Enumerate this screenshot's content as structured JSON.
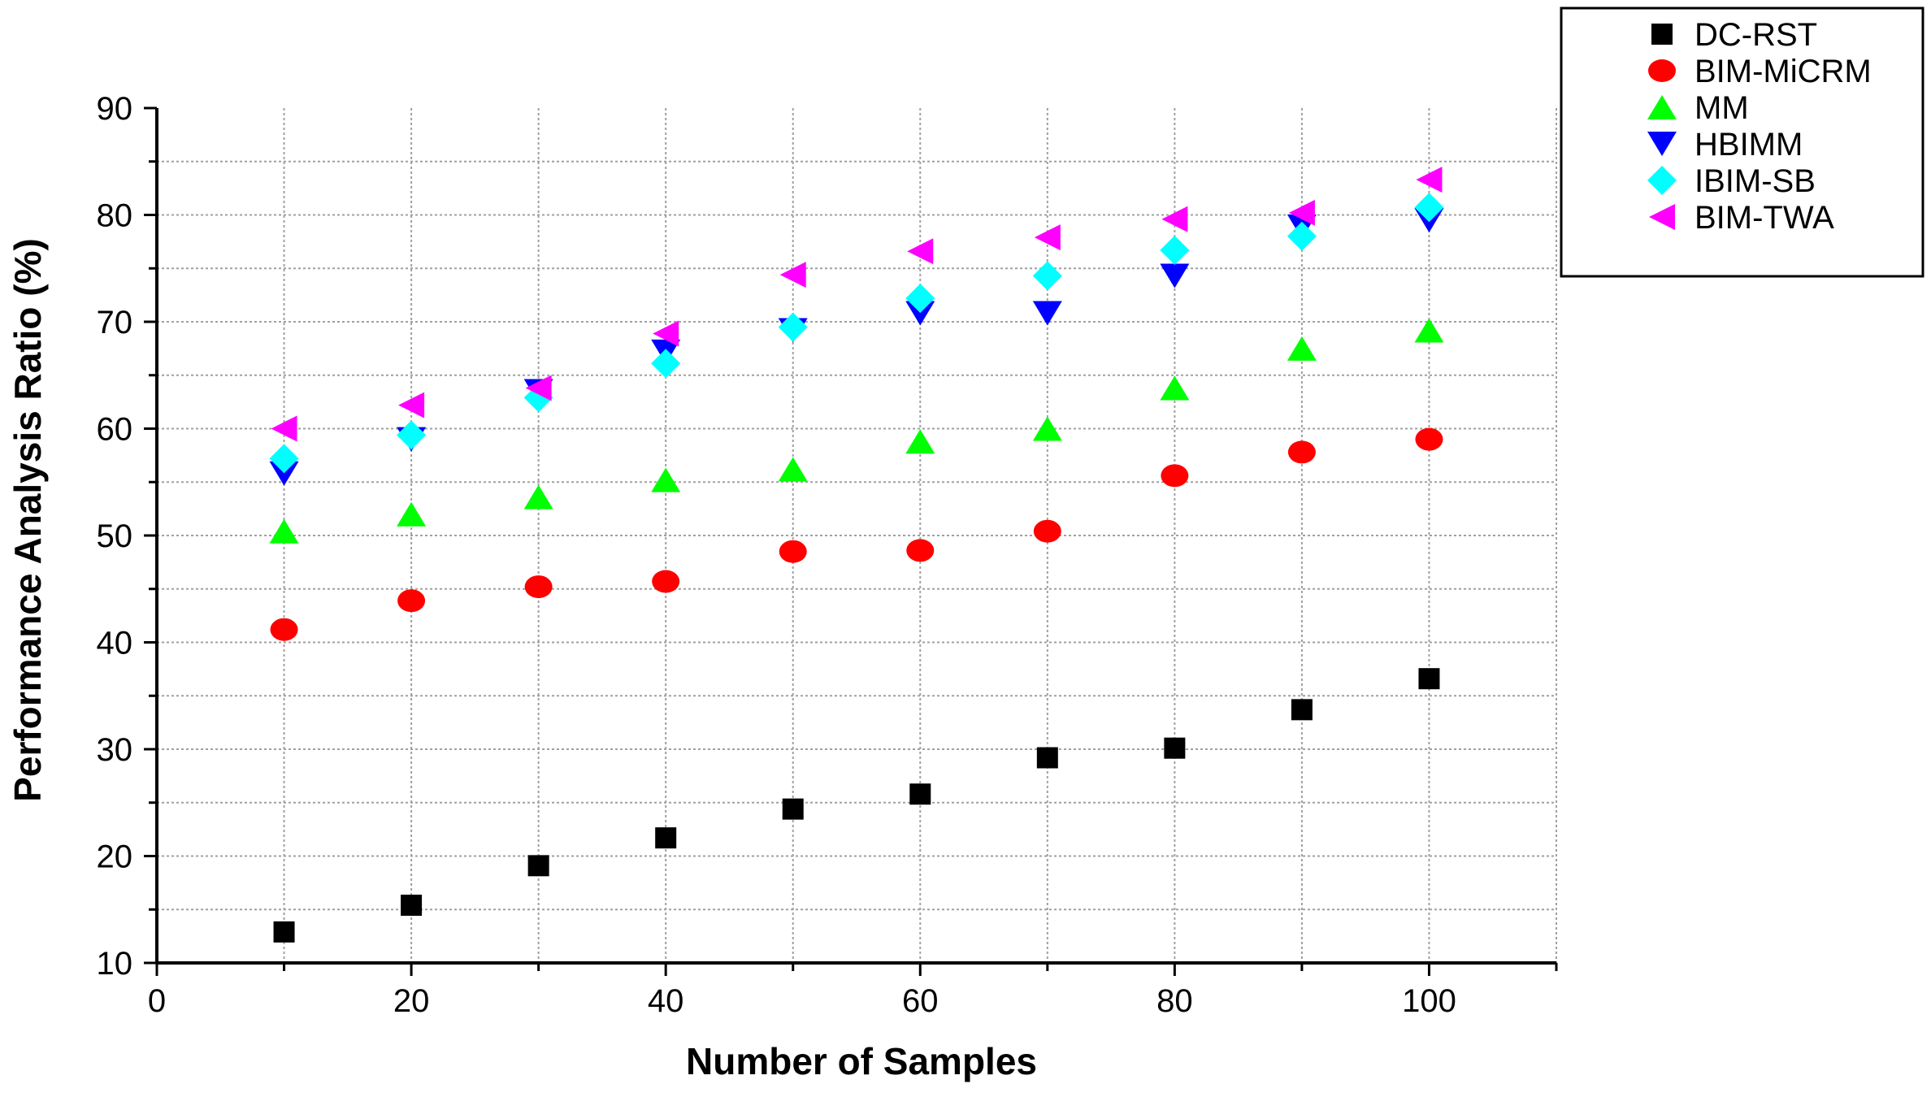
{
  "chart_data": {
    "type": "scatter",
    "title": "",
    "xlabel": "Number of Samples",
    "ylabel": "Performance Analysis Ratio (%)",
    "xlim": [
      0,
      110
    ],
    "ylim": [
      10,
      90
    ],
    "xticks": [
      0,
      20,
      40,
      60,
      80,
      100
    ],
    "yticks": [
      10,
      20,
      30,
      40,
      50,
      60,
      70,
      80,
      90
    ],
    "grid": true,
    "legend_position": "top-right",
    "x": [
      10,
      20,
      30,
      40,
      50,
      60,
      70,
      80,
      90,
      100
    ],
    "series": [
      {
        "name": "DC-RST",
        "marker": "square",
        "color": "#000000",
        "values": [
          12.9,
          15.4,
          19.1,
          21.7,
          24.4,
          25.8,
          29.2,
          30.1,
          33.7,
          36.6
        ]
      },
      {
        "name": "BIM-MiCRM",
        "marker": "circle",
        "color": "#ff0000",
        "values": [
          41.2,
          43.9,
          45.2,
          45.7,
          48.5,
          48.6,
          50.4,
          55.6,
          57.8,
          59.0
        ]
      },
      {
        "name": "MM",
        "marker": "triangle-up",
        "color": "#00ff00",
        "values": [
          50.4,
          52.0,
          53.6,
          55.2,
          56.2,
          58.8,
          60.0,
          63.8,
          67.5,
          69.2
        ]
      },
      {
        "name": "HBIMM",
        "marker": "triangle-down",
        "color": "#0000ff",
        "values": [
          55.8,
          59.0,
          63.5,
          67.2,
          69.2,
          70.8,
          70.8,
          74.3,
          78.9,
          79.5
        ]
      },
      {
        "name": "IBIM-SB",
        "marker": "diamond",
        "color": "#00ffff",
        "values": [
          57.2,
          59.4,
          62.9,
          66.1,
          69.5,
          72.2,
          74.3,
          76.7,
          78.0,
          80.7
        ]
      },
      {
        "name": "BIM-TWA",
        "marker": "triangle-left",
        "color": "#ff00ff",
        "values": [
          60.0,
          62.2,
          63.8,
          68.9,
          74.4,
          76.6,
          77.9,
          79.6,
          80.2,
          83.3
        ]
      }
    ]
  }
}
